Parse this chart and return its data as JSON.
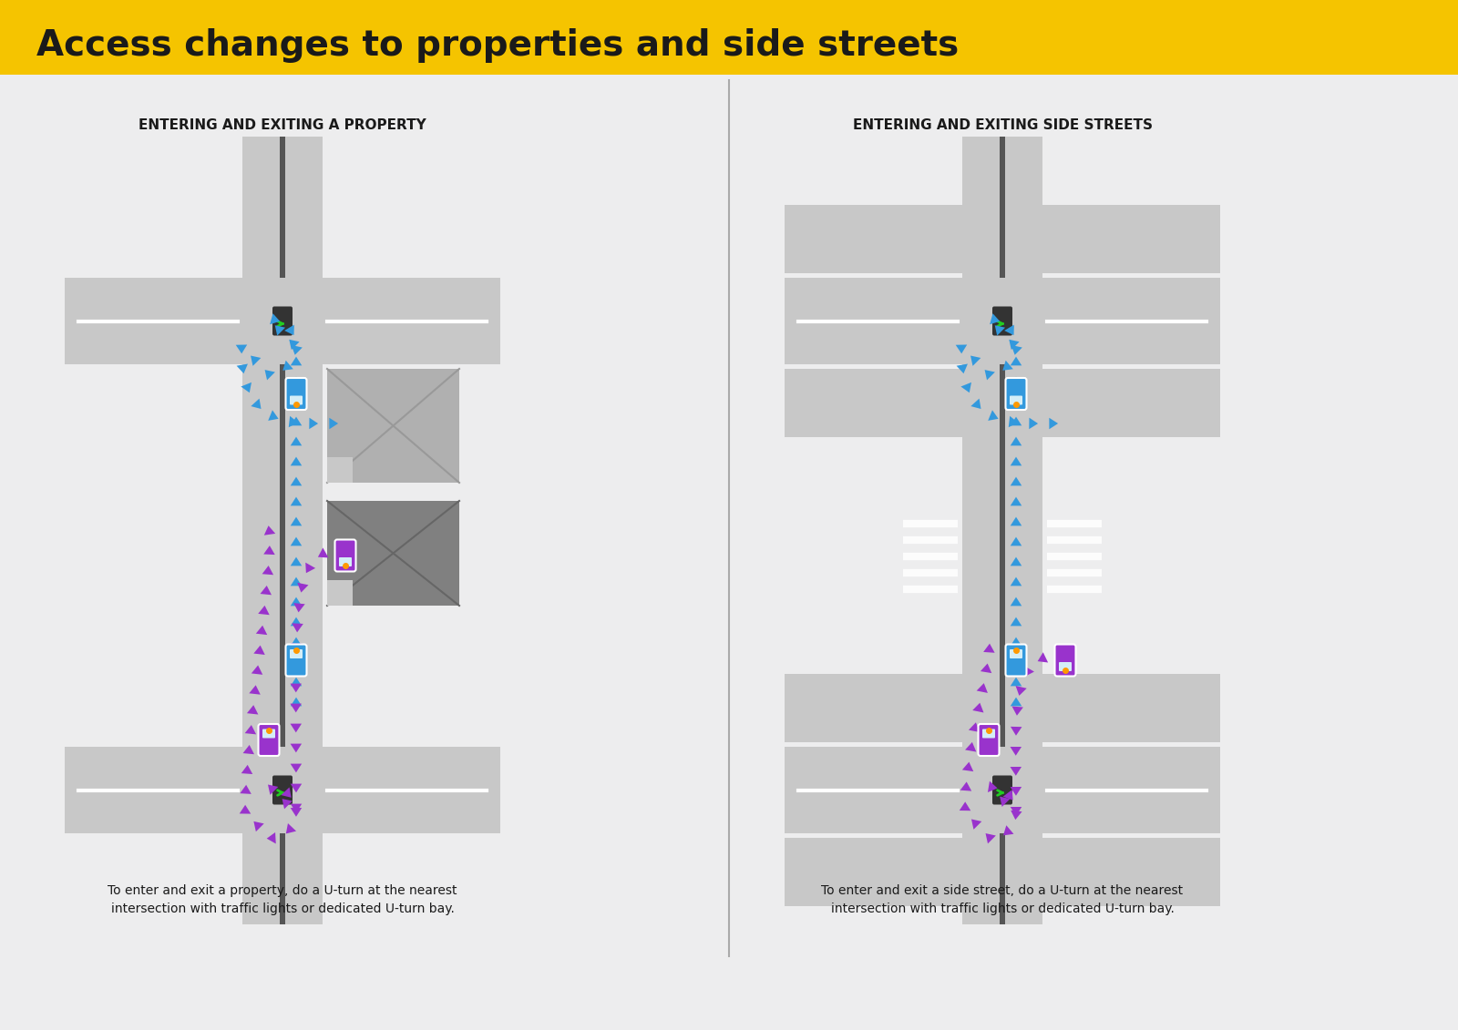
{
  "title": "Access changes to properties and side streets",
  "title_bg": "#F5C400",
  "title_color": "#1a1a1a",
  "bg_color": "#EDEDEE",
  "road_color": "#C8C8C8",
  "road_dark": "#B0B0B0",
  "divider_color": "#555555",
  "building_dark": "#808080",
  "traffic_box": "#333333",
  "traffic_green": "#22CC22",
  "arrow_blue": "#3399DD",
  "arrow_purple": "#9933CC",
  "car_blue": "#3399DD",
  "car_purple": "#9933CC",
  "car_orange_dot": "#FF9900",
  "white_line": "#FFFFFF",
  "separator_color": "#AAAAAA",
  "left_subtitle": "ENTERING AND EXITING A PROPERTY",
  "right_subtitle": "ENTERING AND EXITING SIDE STREETS",
  "left_caption_line1": "To enter and exit a property, do a U-turn at the nearest",
  "left_caption_line2": "intersection with traffic lights or dedicated U-turn bay.",
  "right_caption_line1": "To enter and exit a side street, do a U-turn at the nearest",
  "right_caption_line2": "intersection with traffic lights or dedicated U-turn bay."
}
